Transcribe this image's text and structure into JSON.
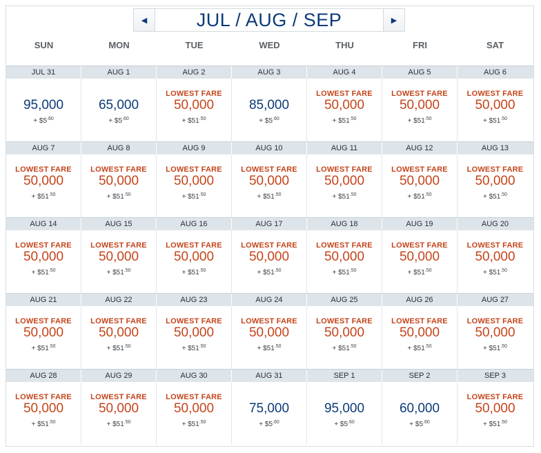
{
  "nav": {
    "title": "JUL / AUG / SEP",
    "prev_icon": "◀",
    "next_icon": "▶"
  },
  "days_of_week": [
    "SUN",
    "MON",
    "TUE",
    "WED",
    "THU",
    "FRI",
    "SAT"
  ],
  "lowest_fare_label": "LOWEST FARE",
  "colors": {
    "accent_blue": "#0b3a78",
    "lowest_orange": "#c4441a",
    "date_bar": "#dde4ea"
  },
  "weeks": [
    [
      {
        "date": "JUL 31",
        "miles": "95,000",
        "lowest": false,
        "tax_prefix": "+ $",
        "tax_dollars": "5",
        "tax_cents": ".60"
      },
      {
        "date": "AUG 1",
        "miles": "65,000",
        "lowest": false,
        "tax_prefix": "+ $",
        "tax_dollars": "5",
        "tax_cents": ".60"
      },
      {
        "date": "AUG 2",
        "miles": "50,000",
        "lowest": true,
        "tax_prefix": "+ $",
        "tax_dollars": "51",
        "tax_cents": ".50"
      },
      {
        "date": "AUG 3",
        "miles": "85,000",
        "lowest": false,
        "tax_prefix": "+ $",
        "tax_dollars": "5",
        "tax_cents": ".60"
      },
      {
        "date": "AUG 4",
        "miles": "50,000",
        "lowest": true,
        "tax_prefix": "+ $",
        "tax_dollars": "51",
        "tax_cents": ".50"
      },
      {
        "date": "AUG 5",
        "miles": "50,000",
        "lowest": true,
        "tax_prefix": "+ $",
        "tax_dollars": "51",
        "tax_cents": ".50"
      },
      {
        "date": "AUG 6",
        "miles": "50,000",
        "lowest": true,
        "tax_prefix": "+ $",
        "tax_dollars": "51",
        "tax_cents": ".50"
      }
    ],
    [
      {
        "date": "AUG 7",
        "miles": "50,000",
        "lowest": true,
        "tax_prefix": "+ $",
        "tax_dollars": "51",
        "tax_cents": ".50"
      },
      {
        "date": "AUG 8",
        "miles": "50,000",
        "lowest": true,
        "tax_prefix": "+ $",
        "tax_dollars": "51",
        "tax_cents": ".50"
      },
      {
        "date": "AUG 9",
        "miles": "50,000",
        "lowest": true,
        "tax_prefix": "+ $",
        "tax_dollars": "51",
        "tax_cents": ".50"
      },
      {
        "date": "AUG 10",
        "miles": "50,000",
        "lowest": true,
        "tax_prefix": "+ $",
        "tax_dollars": "51",
        "tax_cents": ".50"
      },
      {
        "date": "AUG 11",
        "miles": "50,000",
        "lowest": true,
        "tax_prefix": "+ $",
        "tax_dollars": "51",
        "tax_cents": ".50"
      },
      {
        "date": "AUG 12",
        "miles": "50,000",
        "lowest": true,
        "tax_prefix": "+ $",
        "tax_dollars": "51",
        "tax_cents": ".50"
      },
      {
        "date": "AUG 13",
        "miles": "50,000",
        "lowest": true,
        "tax_prefix": "+ $",
        "tax_dollars": "51",
        "tax_cents": ".50"
      }
    ],
    [
      {
        "date": "AUG 14",
        "miles": "50,000",
        "lowest": true,
        "tax_prefix": "+ $",
        "tax_dollars": "51",
        "tax_cents": ".50"
      },
      {
        "date": "AUG 15",
        "miles": "50,000",
        "lowest": true,
        "tax_prefix": "+ $",
        "tax_dollars": "51",
        "tax_cents": ".50"
      },
      {
        "date": "AUG 16",
        "miles": "50,000",
        "lowest": true,
        "tax_prefix": "+ $",
        "tax_dollars": "51",
        "tax_cents": ".50"
      },
      {
        "date": "AUG 17",
        "miles": "50,000",
        "lowest": true,
        "tax_prefix": "+ $",
        "tax_dollars": "51",
        "tax_cents": ".50"
      },
      {
        "date": "AUG 18",
        "miles": "50,000",
        "lowest": true,
        "tax_prefix": "+ $",
        "tax_dollars": "51",
        "tax_cents": ".50"
      },
      {
        "date": "AUG 19",
        "miles": "50,000",
        "lowest": true,
        "tax_prefix": "+ $",
        "tax_dollars": "51",
        "tax_cents": ".50"
      },
      {
        "date": "AUG 20",
        "miles": "50,000",
        "lowest": true,
        "tax_prefix": "+ $",
        "tax_dollars": "51",
        "tax_cents": ".50"
      }
    ],
    [
      {
        "date": "AUG 21",
        "miles": "50,000",
        "lowest": true,
        "tax_prefix": "+ $",
        "tax_dollars": "51",
        "tax_cents": ".50"
      },
      {
        "date": "AUG 22",
        "miles": "50,000",
        "lowest": true,
        "tax_prefix": "+ $",
        "tax_dollars": "51",
        "tax_cents": ".50"
      },
      {
        "date": "AUG 23",
        "miles": "50,000",
        "lowest": true,
        "tax_prefix": "+ $",
        "tax_dollars": "51",
        "tax_cents": ".50"
      },
      {
        "date": "AUG 24",
        "miles": "50,000",
        "lowest": true,
        "tax_prefix": "+ $",
        "tax_dollars": "51",
        "tax_cents": ".50"
      },
      {
        "date": "AUG 25",
        "miles": "50,000",
        "lowest": true,
        "tax_prefix": "+ $",
        "tax_dollars": "51",
        "tax_cents": ".50"
      },
      {
        "date": "AUG 26",
        "miles": "50,000",
        "lowest": true,
        "tax_prefix": "+ $",
        "tax_dollars": "51",
        "tax_cents": ".50"
      },
      {
        "date": "AUG 27",
        "miles": "50,000",
        "lowest": true,
        "tax_prefix": "+ $",
        "tax_dollars": "51",
        "tax_cents": ".50"
      }
    ],
    [
      {
        "date": "AUG 28",
        "miles": "50,000",
        "lowest": true,
        "tax_prefix": "+ $",
        "tax_dollars": "51",
        "tax_cents": ".50"
      },
      {
        "date": "AUG 29",
        "miles": "50,000",
        "lowest": true,
        "tax_prefix": "+ $",
        "tax_dollars": "51",
        "tax_cents": ".50"
      },
      {
        "date": "AUG 30",
        "miles": "50,000",
        "lowest": true,
        "tax_prefix": "+ $",
        "tax_dollars": "51",
        "tax_cents": ".50"
      },
      {
        "date": "AUG 31",
        "miles": "75,000",
        "lowest": false,
        "tax_prefix": "+ $",
        "tax_dollars": "5",
        "tax_cents": ".60"
      },
      {
        "date": "SEP 1",
        "miles": "95,000",
        "lowest": false,
        "tax_prefix": "+ $",
        "tax_dollars": "5",
        "tax_cents": ".60"
      },
      {
        "date": "SEP 2",
        "miles": "60,000",
        "lowest": false,
        "tax_prefix": "+ $",
        "tax_dollars": "5",
        "tax_cents": ".60"
      },
      {
        "date": "SEP 3",
        "miles": "50,000",
        "lowest": true,
        "tax_prefix": "+ $",
        "tax_dollars": "51",
        "tax_cents": ".50"
      }
    ]
  ]
}
